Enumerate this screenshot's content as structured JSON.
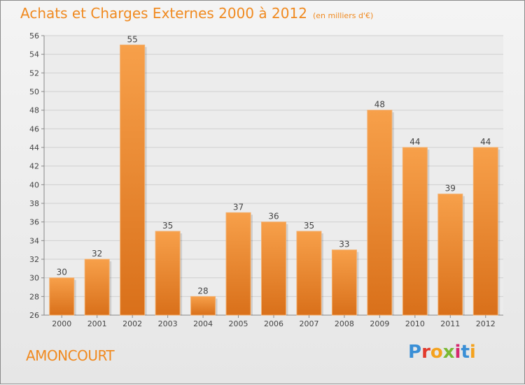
{
  "header": {
    "title": "Achats et Charges Externes 2000 à 2012",
    "unit": "(en milliers d'€)"
  },
  "footer": {
    "place": "AMONCOURT",
    "logo_letters": [
      "P",
      "r",
      "o",
      "x",
      "i",
      "t",
      "i"
    ],
    "logo_colors": [
      "#3a8fd6",
      "#e23a2c",
      "#f4a21e",
      "#79b934",
      "#d6286f",
      "#3a8fd6",
      "#f4a21e"
    ]
  },
  "chart_data": {
    "type": "bar",
    "title": "Achats et Charges Externes 2000 à 2012",
    "categories": [
      "2000",
      "2001",
      "2002",
      "2003",
      "2004",
      "2005",
      "2006",
      "2007",
      "2008",
      "2009",
      "2010",
      "2011",
      "2012"
    ],
    "values": [
      30,
      32,
      55,
      35,
      28,
      37,
      36,
      35,
      33,
      48,
      44,
      39,
      44
    ],
    "ylim": [
      26,
      56
    ],
    "yticks": [
      26,
      28,
      30,
      32,
      34,
      36,
      38,
      40,
      42,
      44,
      46,
      48,
      50,
      52,
      54,
      56
    ],
    "grid": true,
    "bar_color_top": "#f7a04a",
    "bar_color_bottom": "#d9701a",
    "axis_color": "#888888",
    "grid_color": "#d0d0d0"
  }
}
